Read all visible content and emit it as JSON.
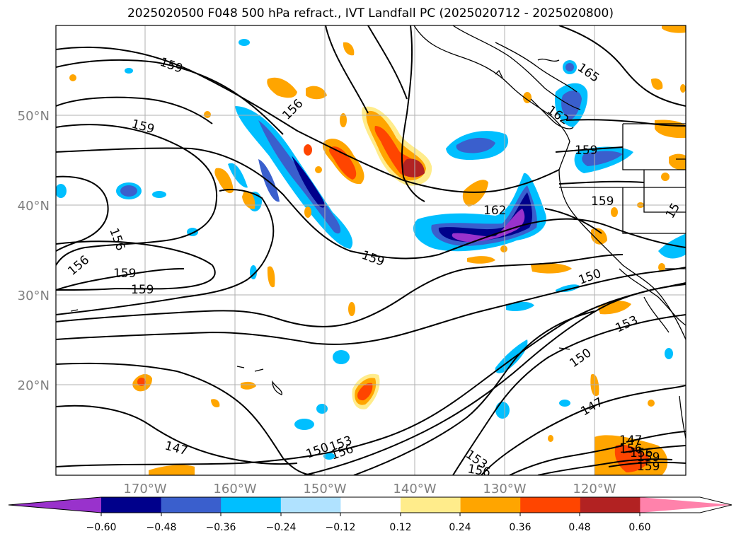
{
  "title": "2025020500 F048 500 hPa refract., IVT Landfall PC (2025020712 - 2025020800)",
  "map": {
    "lon_labels": [
      "170°W",
      "160°W",
      "150°W",
      "140°W",
      "130°W",
      "120°W"
    ],
    "lat_labels": [
      "50°N",
      "40°N",
      "30°N",
      "20°N"
    ],
    "contour_labels": [
      "159",
      "156",
      "159",
      "156",
      "159",
      "159",
      "156",
      "159",
      "162",
      "162",
      "165",
      "159",
      "159",
      "150",
      "153",
      "150",
      "147",
      "147",
      "150",
      "153",
      "156",
      "153",
      "156",
      "147",
      "156",
      "159",
      "159",
      "156",
      "15"
    ]
  },
  "colorbar": {
    "tick_labels": [
      "−0.60",
      "−0.48",
      "−0.36",
      "−0.24",
      "−0.12",
      "0.12",
      "0.24",
      "0.36",
      "0.48",
      "0.60"
    ],
    "colors": [
      "#9932cc",
      "#00008b",
      "#3a5fcd",
      "#00bfff",
      "#b0e2ff",
      "#ffffff",
      "#ffec8b",
      "#ffa500",
      "#ff4500",
      "#b22222",
      "#ff82ab"
    ]
  },
  "fill_colors": {
    "n060": "#9932cc",
    "n048": "#00008b",
    "n036": "#3a5fcd",
    "n024": "#00bfff",
    "n012": "#b0e2ff",
    "p012": "#ffec8b",
    "p024": "#ffa500",
    "p036": "#ff4500",
    "p048": "#b22222",
    "p060": "#ff82ab"
  }
}
